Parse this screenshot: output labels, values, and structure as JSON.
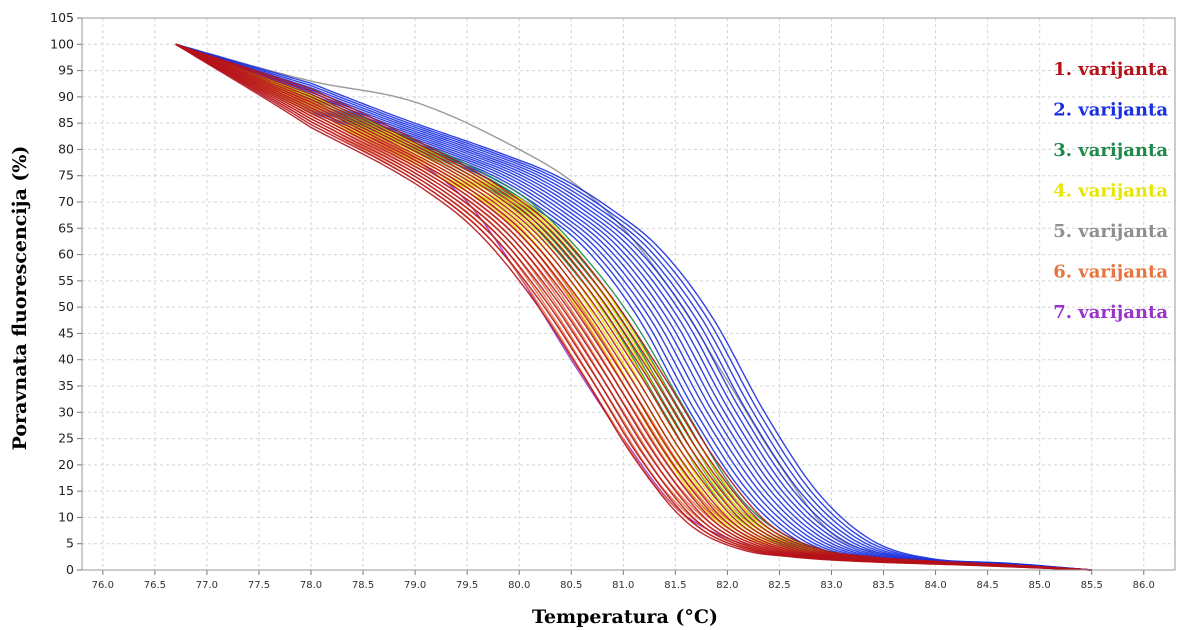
{
  "chart_data": {
    "type": "line",
    "xlabel": "Temperatura (°C)",
    "ylabel": "Poravnata fluorescencija (%)",
    "xlim": [
      75.8,
      86.3
    ],
    "ylim": [
      0,
      105
    ],
    "xticks": [
      "76.0",
      "76.5",
      "77.0",
      "77.5",
      "78.0",
      "78.5",
      "79.0",
      "79.5",
      "80.0",
      "80.5",
      "81.0",
      "81.5",
      "82.0",
      "82.5",
      "83.0",
      "83.5",
      "84.0",
      "84.5",
      "85.0",
      "85.5",
      "86.0"
    ],
    "yticks": [
      "0",
      "5",
      "10",
      "15",
      "20",
      "25",
      "30",
      "35",
      "40",
      "45",
      "50",
      "55",
      "60",
      "65",
      "70",
      "75",
      "80",
      "85",
      "90",
      "95",
      "100",
      "105"
    ],
    "grid": true,
    "legend_position": "top-right",
    "series": [
      {
        "name": "1. varijanta",
        "color": "#b5121b",
        "count": 15,
        "x": [
          76.7,
          78.5,
          79.5,
          80.0,
          80.5,
          81.0,
          81.5,
          82.0,
          82.5,
          83.0,
          83.5,
          84.5,
          85.5
        ],
        "y": [
          100,
          83,
          72,
          64,
          52,
          37,
          21,
          9,
          4,
          2.5,
          1.8,
          1.0,
          0
        ]
      },
      {
        "name": "2. varijanta",
        "color": "#1a2fe0",
        "count": 14,
        "x": [
          76.7,
          78.5,
          79.5,
          80.0,
          80.5,
          81.0,
          81.5,
          82.0,
          82.5,
          83.0,
          83.5,
          84.5,
          85.5
        ],
        "y": [
          100,
          86,
          79,
          75,
          69,
          61,
          48,
          30,
          15,
          6,
          2.5,
          1.3,
          0
        ]
      },
      {
        "name": "3. varijanta",
        "color": "#1e8a4a",
        "count": 5,
        "x": [
          76.7,
          78.5,
          79.5,
          80.0,
          80.5,
          81.0,
          81.5,
          82.0,
          82.5,
          83.0,
          83.5,
          84.5,
          85.5
        ],
        "y": [
          100,
          85,
          76,
          70,
          60,
          47,
          30,
          14,
          6,
          3,
          2,
          1.0,
          0
        ]
      },
      {
        "name": "4. varijanta",
        "color": "#e6e600",
        "count": 8,
        "x": [
          76.7,
          78.5,
          79.5,
          80.0,
          80.5,
          81.0,
          81.5,
          82.0,
          82.5,
          83.0,
          83.5,
          84.5,
          85.5
        ],
        "y": [
          100,
          84,
          74,
          68,
          57,
          42,
          25,
          11,
          5,
          2.5,
          1.8,
          1.0,
          0
        ]
      },
      {
        "name": "5. varijanta",
        "color": "#8f8f8f",
        "count": 1,
        "x": [
          76.7,
          78.0,
          79.0,
          80.0,
          80.5,
          81.0,
          81.5,
          82.0,
          82.5,
          83.0,
          83.5,
          84.5,
          85.5
        ],
        "y": [
          100,
          93,
          89,
          80,
          74,
          65,
          52,
          36,
          20,
          7,
          3,
          1.3,
          0
        ]
      },
      {
        "name": "6. varijanta",
        "color": "#e8733f",
        "count": 8,
        "x": [
          76.7,
          78.5,
          79.5,
          80.0,
          80.5,
          81.0,
          81.5,
          82.0,
          82.5,
          83.0,
          83.5,
          84.5,
          85.5
        ],
        "y": [
          100,
          82,
          70,
          61,
          47,
          31,
          16,
          7,
          3.5,
          2.2,
          1.6,
          1.0,
          0
        ]
      },
      {
        "name": "7. varijanta",
        "color": "#9933cc",
        "count": 1,
        "x": [
          76.7,
          78.5,
          79.0,
          79.5,
          80.0,
          80.5,
          81.0,
          81.5,
          82.0,
          82.5,
          83.0,
          84.0,
          85.5
        ],
        "y": [
          100,
          83,
          78,
          70,
          56,
          40,
          25,
          12,
          6,
          3.5,
          2.3,
          1.3,
          0
        ]
      }
    ]
  }
}
